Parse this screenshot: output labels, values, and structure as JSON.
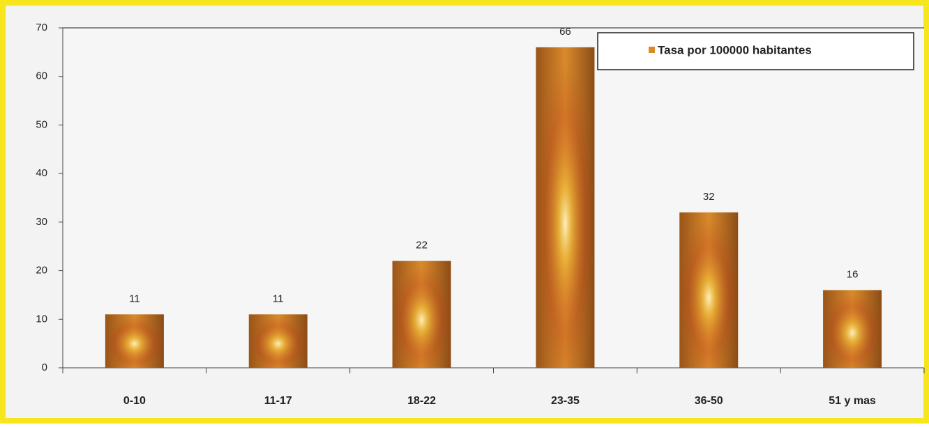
{
  "chart_data": {
    "type": "bar",
    "categories": [
      "0-10",
      "11-17",
      "18-22",
      "23-35",
      "36-50",
      "51 y mas"
    ],
    "series": [
      {
        "name": "Tasa por 100000 habitantes",
        "color": "#d98a2b",
        "values": [
          11,
          11,
          22,
          66,
          32,
          16
        ]
      }
    ],
    "ylim": [
      0,
      70
    ],
    "yticks": [
      0,
      10,
      20,
      30,
      40,
      50,
      60,
      70
    ],
    "grid": false,
    "legend": "top-right",
    "data_labels": true
  }
}
